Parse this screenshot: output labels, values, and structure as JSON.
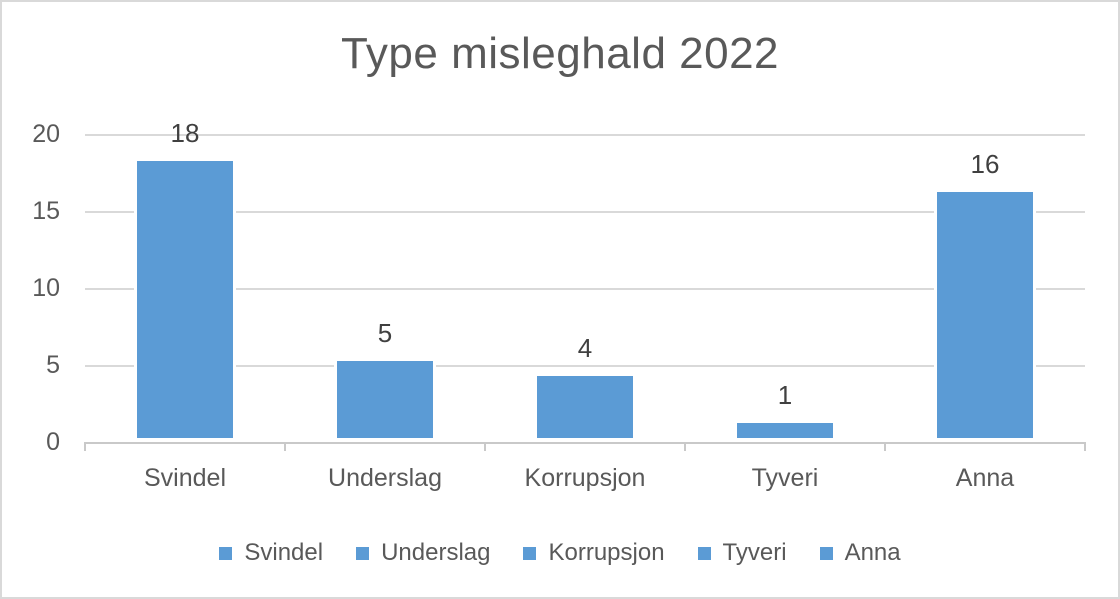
{
  "chart_data": {
    "type": "bar",
    "title": "Type misleghald 2022",
    "categories": [
      "Svindel",
      "Underslag",
      "Korrupsjon",
      "Tyveri",
      "Anna"
    ],
    "values": [
      18,
      5,
      4,
      1,
      16
    ],
    "data_labels": [
      "18",
      "5",
      "4",
      "1",
      "16"
    ],
    "y_ticks": [
      0,
      5,
      10,
      15,
      20
    ],
    "y_tick_labels": [
      "0",
      "5",
      "10",
      "15",
      "20"
    ],
    "ylim": [
      0,
      20
    ],
    "grid": true,
    "legend_position": "bottom",
    "legend": [
      "Svindel",
      "Underslag",
      "Korrupsjon",
      "Tyveri",
      "Anna"
    ],
    "colors": {
      "bar": "#5b9bd5",
      "title_text": "#595959",
      "axis_text": "#595959",
      "data_label_text": "#404040",
      "gridline": "#d9d9d9",
      "axis_line": "#c9c9c9",
      "canvas_border": "#d9d9d9",
      "background": "#ffffff"
    }
  }
}
